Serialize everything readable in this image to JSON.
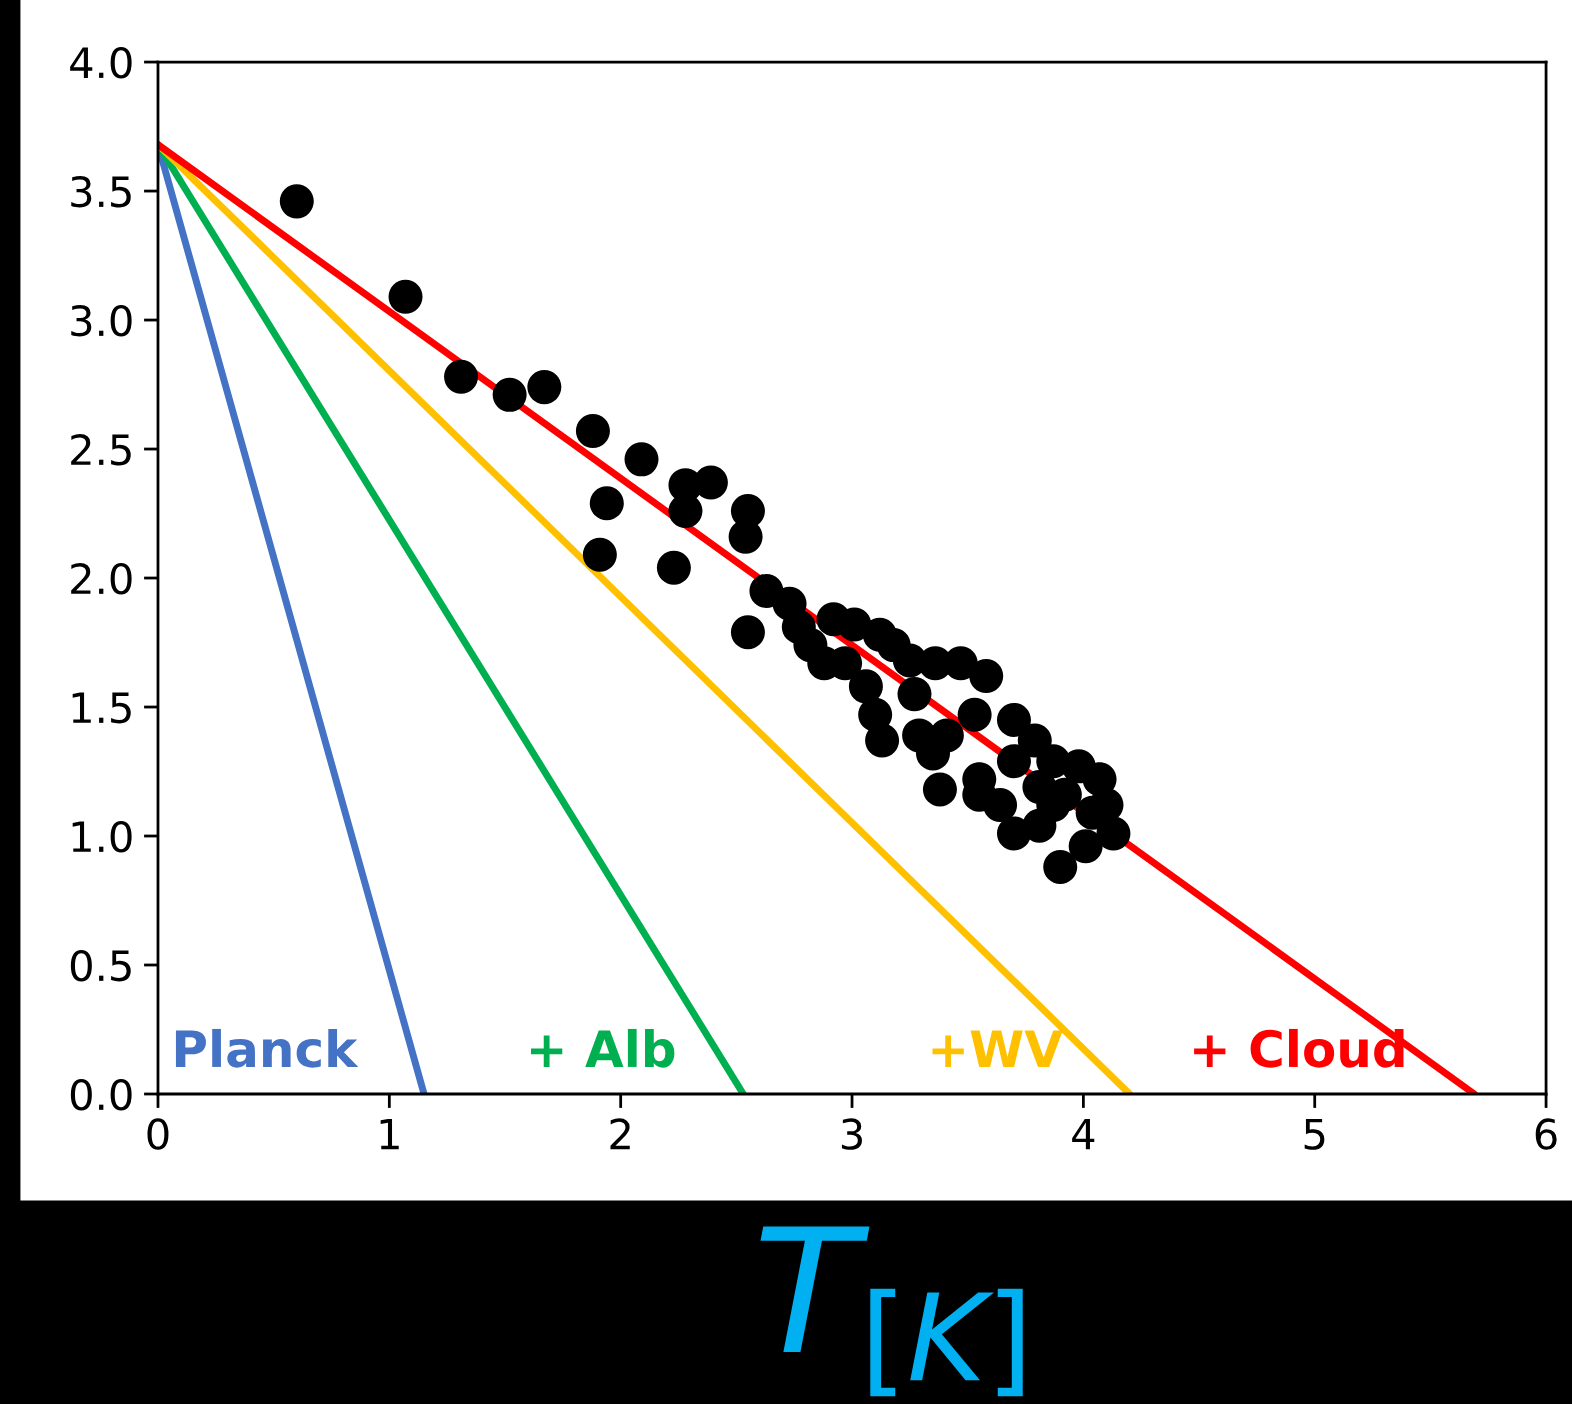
{
  "chart_data": {
    "type": "scatter",
    "xlabel": "T$_{[K]}$",
    "xlim": [
      0,
      6
    ],
    "ylim": [
      0,
      4.0
    ],
    "xticks": [
      0,
      1,
      2,
      3,
      4,
      5,
      6
    ],
    "yticks": [
      {
        "value": 0,
        "label": "0.0"
      },
      {
        "value": 0.5,
        "label": "0.5"
      },
      {
        "value": 1,
        "label": "1.0"
      },
      {
        "value": 1.5,
        "label": "1.5"
      },
      {
        "value": 2,
        "label": "2.0"
      },
      {
        "value": 2.5,
        "label": "2.5"
      },
      {
        "value": 3,
        "label": "3.0"
      },
      {
        "value": 3.5,
        "label": "3.5"
      },
      {
        "value": 4,
        "label": "4.0"
      }
    ],
    "grid": false,
    "legend": false,
    "series": [
      {
        "name": "Planck",
        "type": "line",
        "color": "#4472c4",
        "marker": "none",
        "x": [
          0,
          1.15
        ],
        "values": [
          3.68,
          0
        ]
      },
      {
        "name": "+ Alb",
        "type": "line",
        "color": "#00b050",
        "marker": "none",
        "x": [
          0,
          2.53
        ],
        "values": [
          3.68,
          0
        ]
      },
      {
        "name": "+WV",
        "type": "line",
        "color": "#ffc000",
        "marker": "none",
        "x": [
          0,
          4.2
        ],
        "values": [
          3.68,
          0
        ]
      },
      {
        "name": "+ Cloud",
        "type": "line",
        "color": "#ff0000",
        "marker": "none",
        "x": [
          0,
          5.69
        ],
        "values": [
          3.68,
          0
        ]
      },
      {
        "color": "#000000",
        "marker": "circle",
        "x": [
          0.6,
          1.07,
          1.31,
          1.52,
          1.67,
          1.88,
          1.94,
          1.91,
          2.09,
          2.28,
          2.39,
          2.28,
          2.23,
          2.55,
          2.54,
          2.55,
          2.63,
          2.73,
          2.77,
          2.82,
          2.88,
          2.92,
          3.01,
          3.12,
          3.18,
          2.97,
          3.06,
          3.1,
          3.25,
          3.36,
          3.47,
          3.58,
          3.29,
          3.35,
          3.38,
          3.27,
          3.41,
          3.53,
          3.55,
          3.55,
          3.7,
          3.79,
          3.7,
          3.87,
          3.98,
          4.07,
          3.92,
          4.1,
          3.7,
          3.81,
          3.9,
          4.01,
          4.13,
          3.87,
          4.04,
          3.64,
          3.81,
          3.13
        ],
        "values": [
          3.46,
          3.09,
          2.78,
          2.71,
          2.74,
          2.57,
          2.29,
          2.09,
          2.46,
          2.36,
          2.37,
          2.26,
          2.04,
          2.26,
          2.16,
          1.79,
          1.95,
          1.9,
          1.81,
          1.74,
          1.67,
          1.84,
          1.82,
          1.78,
          1.74,
          1.67,
          1.58,
          1.47,
          1.68,
          1.67,
          1.67,
          1.62,
          1.39,
          1.32,
          1.18,
          1.55,
          1.39,
          1.47,
          1.22,
          1.16,
          1.45,
          1.37,
          1.29,
          1.29,
          1.27,
          1.22,
          1.16,
          1.12,
          1.01,
          1.04,
          0.88,
          0.96,
          1.01,
          1.12,
          1.09,
          1.12,
          1.19,
          1.37
        ]
      }
    ]
  }
}
